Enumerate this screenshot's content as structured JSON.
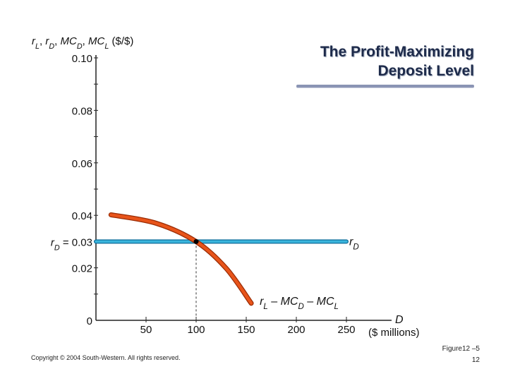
{
  "title": {
    "line1": "The Profit-Maximizing",
    "line2": "Deposit Level"
  },
  "footer": {
    "copyright": "Copyright © 2004 South-Western. All rights reserved.",
    "figure": "Figure12 –5",
    "page": "12"
  },
  "chart_data": {
    "type": "line",
    "title": "The Profit-Maximizing Deposit Level",
    "ylabel": "r_L, r_D, MC_D, MC_L ($/$)",
    "xlabel": "D ($ millions)",
    "xlim": [
      0,
      300
    ],
    "ylim": [
      0,
      0.1
    ],
    "x_ticks": [
      50,
      100,
      150,
      200,
      250
    ],
    "x_tick_labels": [
      "50",
      "100",
      "150",
      "200",
      "250"
    ],
    "y_ticks": [
      0,
      0.02,
      0.03,
      0.04,
      0.06,
      0.08,
      0.1
    ],
    "y_tick_labels": [
      "0",
      "0.02",
      "r_D = 0.03",
      "0.04",
      "0.06",
      "0.08",
      "0.10"
    ],
    "colors": {
      "curve": "#e8541a",
      "curve_outline": "#9a2c05",
      "line": "#39b4dc",
      "line_outline": "#0f6d9a",
      "axis": "#222222"
    },
    "series": [
      {
        "name": "r_D",
        "label": "r_D",
        "x": [
          0,
          250
        ],
        "y": [
          0.03,
          0.03
        ]
      },
      {
        "name": "r_L – MC_D – MC_L",
        "label": "r_L – MC_D – MC_L",
        "x": [
          15,
          60,
          100,
          130,
          155
        ],
        "y": [
          0.0402,
          0.037,
          0.03,
          0.0198,
          0.0065
        ]
      }
    ],
    "optimum": {
      "x": 100,
      "y": 0.03
    }
  }
}
